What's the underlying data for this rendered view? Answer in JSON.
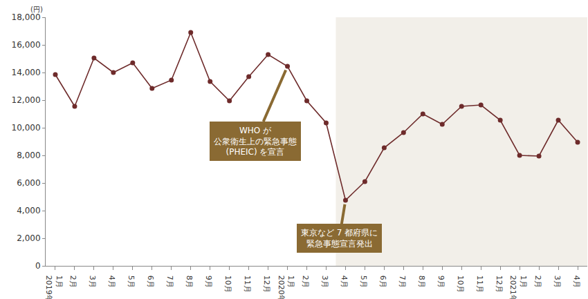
{
  "chart_data": {
    "type": "line",
    "y_label": "(円)",
    "categories": [
      "1月",
      "2月",
      "3月",
      "4月",
      "5月",
      "6月",
      "7月",
      "8月",
      "9月",
      "10月",
      "11月",
      "12月",
      "1月",
      "2月",
      "3月",
      "4月",
      "5月",
      "6月",
      "7月",
      "8月",
      "9月",
      "10月",
      "11月",
      "12月",
      "1月",
      "2月",
      "3月",
      "4月"
    ],
    "year_labels": [
      "2019年",
      null,
      null,
      null,
      null,
      null,
      null,
      null,
      null,
      null,
      null,
      null,
      "2020年",
      null,
      null,
      null,
      null,
      null,
      null,
      null,
      null,
      null,
      null,
      null,
      "2021年",
      null,
      null,
      null
    ],
    "values": [
      13850,
      11550,
      15050,
      14000,
      14700,
      12850,
      13450,
      16900,
      13350,
      11950,
      13700,
      15300,
      14450,
      11950,
      10350,
      4750,
      6100,
      8550,
      9650,
      11000,
      10250,
      11550,
      11650,
      10550,
      8000,
      7950,
      10550,
      8950
    ],
    "color": "#6e2b2b",
    "marker": "circle",
    "grid": false,
    "ylim": [
      0,
      18000
    ],
    "yticks": [
      0,
      {
        "value": 2000,
        "label": "2,000"
      },
      {
        "value": 4000,
        "label": "4,000"
      },
      {
        "value": 6000,
        "label": "6,000"
      },
      {
        "value": 8000,
        "label": "8,000"
      },
      {
        "value": 10000,
        "label": "10,000"
      },
      {
        "value": 12000,
        "label": "12,000"
      },
      {
        "value": 14000,
        "label": "14,000"
      },
      {
        "value": 16000,
        "label": "16,000"
      },
      {
        "value": 18000,
        "label": "18,000"
      }
    ],
    "shaded_from": 15,
    "annotations": [
      {
        "text": "WHO が\n公衆衛生上の緊急事態\n(PHEIC) を宣言",
        "at": 12
      },
      {
        "text": "東京など 7 都府県に\n緊急事態宣言発出",
        "at": 15
      }
    ]
  }
}
